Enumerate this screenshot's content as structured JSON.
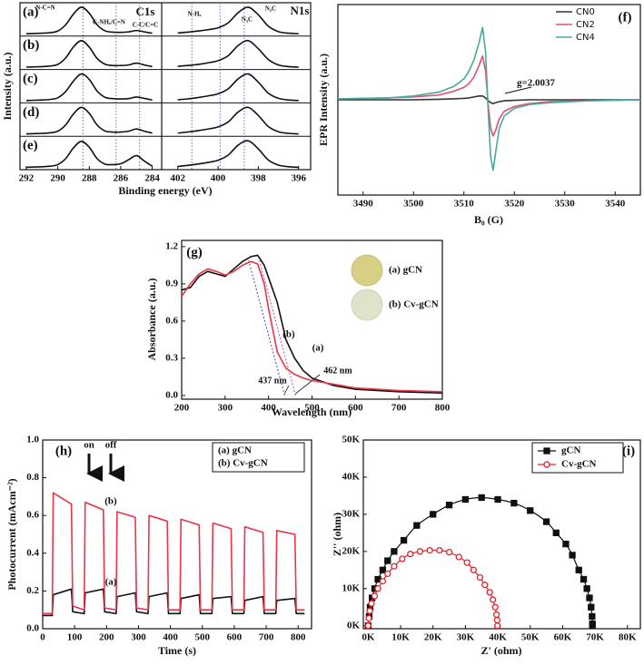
{
  "chart_data": [
    {
      "type": "xps-stack",
      "x_label": "Binding energy (eV)",
      "y_label": "Intensity (a.u.)",
      "ylim": [
        0,
        1.1
      ],
      "color": "#111111",
      "ref_color": "#5b6fd6",
      "regions": [
        {
          "name": "C1s",
          "xlim": [
            292.4,
            283.4
          ],
          "xticks": [
            292,
            290,
            288,
            286,
            284
          ],
          "x": [
            292,
            291.5,
            291,
            290.5,
            290,
            289.5,
            289,
            288.5,
            288,
            287.5,
            287,
            286.5,
            286,
            285.5,
            285,
            284.5,
            284
          ],
          "ref_lines": [
            288.4,
            286.3,
            284.8
          ],
          "annotations": [
            "N-C=N",
            "C-NHₓ/C=N",
            "C-C/C=C"
          ]
        },
        {
          "name": "N1s",
          "xlim": [
            402.8,
            395.4
          ],
          "xticks": [
            402,
            400,
            398,
            396
          ],
          "x": [
            402,
            401.5,
            401,
            400.5,
            400,
            399.5,
            399,
            398.5,
            398,
            397.5,
            397,
            396.5,
            396
          ],
          "ref_lines": [
            401.3,
            399.9,
            398.7
          ],
          "annotations": [
            "N-Hₓ",
            "N₃C",
            "N₂C"
          ]
        }
      ],
      "rows": [
        {
          "label": "(a)",
          "values": [
            [
              0.02,
              0.03,
              0.04,
              0.06,
              0.12,
              0.35,
              0.75,
              1.0,
              0.78,
              0.35,
              0.13,
              0.08,
              0.07,
              0.09,
              0.14,
              0.09,
              0.04
            ],
            [
              0.05,
              0.08,
              0.12,
              0.17,
              0.24,
              0.42,
              0.8,
              1.0,
              0.72,
              0.3,
              0.1,
              0.04,
              0.02
            ]
          ]
        },
        {
          "label": "(b)",
          "values": [
            [
              0.02,
              0.03,
              0.04,
              0.06,
              0.12,
              0.36,
              0.77,
              1.0,
              0.76,
              0.34,
              0.13,
              0.08,
              0.08,
              0.1,
              0.17,
              0.1,
              0.04
            ],
            [
              0.05,
              0.08,
              0.12,
              0.18,
              0.26,
              0.44,
              0.82,
              1.0,
              0.7,
              0.3,
              0.1,
              0.04,
              0.02
            ]
          ]
        },
        {
          "label": "(c)",
          "values": [
            [
              0.02,
              0.03,
              0.04,
              0.06,
              0.12,
              0.35,
              0.74,
              1.0,
              0.8,
              0.37,
              0.14,
              0.09,
              0.08,
              0.09,
              0.15,
              0.1,
              0.04
            ],
            [
              0.05,
              0.08,
              0.13,
              0.19,
              0.27,
              0.45,
              0.82,
              1.0,
              0.7,
              0.29,
              0.1,
              0.04,
              0.02
            ]
          ]
        },
        {
          "label": "(d)",
          "values": [
            [
              0.02,
              0.03,
              0.04,
              0.06,
              0.12,
              0.35,
              0.76,
              1.0,
              0.78,
              0.35,
              0.13,
              0.09,
              0.09,
              0.12,
              0.2,
              0.12,
              0.05
            ],
            [
              0.05,
              0.09,
              0.14,
              0.2,
              0.28,
              0.46,
              0.83,
              1.0,
              0.7,
              0.29,
              0.1,
              0.04,
              0.02
            ]
          ]
        },
        {
          "label": "(e)",
          "values": [
            [
              0.02,
              0.03,
              0.04,
              0.06,
              0.12,
              0.34,
              0.74,
              0.98,
              0.76,
              0.34,
              0.14,
              0.12,
              0.15,
              0.3,
              0.45,
              0.25,
              0.06
            ],
            [
              0.05,
              0.09,
              0.14,
              0.2,
              0.28,
              0.47,
              0.84,
              1.0,
              0.7,
              0.29,
              0.1,
              0.04,
              0.02
            ]
          ]
        }
      ]
    },
    {
      "type": "line",
      "label": "(f)",
      "x_label": "B₀ (G)",
      "y_label": "EPR Intensity (a.u.)",
      "legend": "upper right",
      "xlim": [
        3485,
        3545
      ],
      "xticks": [
        3490,
        3500,
        3510,
        3520,
        3530,
        3540
      ],
      "ylim": [
        -1,
        1
      ],
      "x": [
        3485,
        3495,
        3500,
        3505,
        3508,
        3510,
        3511,
        3512,
        3513,
        3513.7,
        3514.3,
        3514.8,
        3515.3,
        3515.8,
        3516.3,
        3517,
        3518,
        3520,
        3523,
        3527,
        3535,
        3545
      ],
      "series": [
        {
          "name": "CN0",
          "color": "#333333",
          "values": [
            0,
            0,
            0,
            0.005,
            0.01,
            0.015,
            0.02,
            0.03,
            0.04,
            0.04,
            0.02,
            -0.01,
            -0.03,
            -0.04,
            -0.03,
            -0.02,
            -0.01,
            -0.005,
            0,
            0,
            0,
            0
          ]
        },
        {
          "name": "CN2",
          "color": "#e0506e",
          "values": [
            0.01,
            0.02,
            0.03,
            0.05,
            0.09,
            0.13,
            0.17,
            0.24,
            0.36,
            0.46,
            0.3,
            -0.05,
            -0.3,
            -0.38,
            -0.32,
            -0.2,
            -0.12,
            -0.07,
            -0.04,
            -0.02,
            -0.01,
            0
          ]
        },
        {
          "name": "CN4",
          "color": "#4aa8a0",
          "values": [
            0.01,
            0.02,
            0.04,
            0.08,
            0.14,
            0.22,
            0.3,
            0.42,
            0.6,
            0.76,
            0.5,
            -0.1,
            -0.6,
            -0.74,
            -0.55,
            -0.3,
            -0.17,
            -0.09,
            -0.05,
            -0.03,
            -0.01,
            0
          ]
        }
      ],
      "annotations": [
        {
          "text": "g=2.0037",
          "color": "#111111"
        }
      ]
    },
    {
      "type": "line",
      "label": "(g)",
      "x_label": "Wavelength (nm)",
      "y_label": "Absorbance (a.u.)",
      "legend": "upper right",
      "xlim": [
        200,
        800
      ],
      "xticks": [
        200,
        300,
        400,
        500,
        600,
        700,
        800
      ],
      "ylim": [
        -0.03,
        1.25
      ],
      "yticks": [
        {
          "value": 0,
          "label": "0.0"
        },
        0.3,
        0.6,
        0.9,
        1.2
      ],
      "x": [
        200,
        220,
        240,
        260,
        280,
        300,
        320,
        340,
        360,
        375,
        390,
        400,
        420,
        440,
        460,
        480,
        500,
        550,
        600,
        650,
        700,
        800
      ],
      "series": [
        {
          "name": "(a) gCN",
          "color": "#111111",
          "values": [
            0.85,
            0.87,
            0.96,
            1.0,
            0.98,
            0.96,
            1.02,
            1.08,
            1.12,
            1.13,
            1.05,
            0.95,
            0.75,
            0.45,
            0.3,
            0.2,
            0.14,
            0.08,
            0.05,
            0.04,
            0.03,
            0.02
          ]
        },
        {
          "name": "(b) Cv-gCN",
          "color": "#e8354a",
          "values": [
            0.8,
            0.9,
            0.98,
            1.02,
            1.0,
            0.97,
            1.0,
            1.05,
            1.08,
            1.06,
            0.9,
            0.7,
            0.35,
            0.22,
            0.17,
            0.14,
            0.12,
            0.09,
            0.06,
            0.05,
            0.04,
            0.03
          ]
        }
      ],
      "annotations": [
        {
          "text": "(a)",
          "color": "#111111"
        },
        {
          "text": "(b)",
          "color": "#e8354a"
        }
      ],
      "tangents": [
        {
          "value": 437,
          "label": "437 nm",
          "color": "#3b4bd0"
        },
        {
          "value": 462,
          "label": "462 nm",
          "color": "#d040b0"
        }
      ]
    },
    {
      "type": "line",
      "label": "(h)",
      "x_label": "Time (s)",
      "y_label": "Photocurrent (mAcm⁻²)",
      "legend": "upper right",
      "xlim": [
        0,
        842
      ],
      "xticks": [
        0,
        100,
        200,
        300,
        400,
        500,
        600,
        700,
        800
      ],
      "ylim": [
        0,
        1
      ],
      "yticks": [
        {
          "value": 0,
          "label": "0.0"
        },
        0.2,
        0.4,
        0.6,
        0.8,
        {
          "value": 1,
          "label": "1.0"
        }
      ],
      "x": [
        0,
        30,
        33,
        90,
        94,
        130,
        133,
        190,
        194,
        230,
        233,
        290,
        294,
        330,
        333,
        390,
        394,
        430,
        433,
        490,
        494,
        530,
        533,
        590,
        594,
        630,
        633,
        690,
        694,
        730,
        733,
        790,
        794,
        820
      ],
      "series": [
        {
          "name": "(a) gCN",
          "color": "#111111",
          "values": [
            0.07,
            0.07,
            0.18,
            0.21,
            0.09,
            0.08,
            0.19,
            0.21,
            0.09,
            0.08,
            0.17,
            0.19,
            0.09,
            0.08,
            0.17,
            0.19,
            0.08,
            0.08,
            0.16,
            0.18,
            0.08,
            0.08,
            0.16,
            0.17,
            0.08,
            0.08,
            0.15,
            0.17,
            0.08,
            0.08,
            0.15,
            0.16,
            0.08,
            0.08
          ]
        },
        {
          "name": "(b) Cv-gCN",
          "color": "#e8354a",
          "values": [
            0.08,
            0.08,
            0.72,
            0.66,
            0.12,
            0.1,
            0.67,
            0.63,
            0.11,
            0.1,
            0.62,
            0.59,
            0.11,
            0.1,
            0.6,
            0.57,
            0.1,
            0.1,
            0.58,
            0.55,
            0.1,
            0.1,
            0.56,
            0.53,
            0.1,
            0.1,
            0.54,
            0.51,
            0.1,
            0.1,
            0.52,
            0.5,
            0.1,
            0.1
          ]
        }
      ],
      "annotations": [
        {
          "text": "on",
          "color": "#2a3f9e"
        },
        {
          "text": "off",
          "color": "#2a3f9e"
        },
        {
          "text": "(b)",
          "color": "#4a5fc1"
        },
        {
          "text": "(a)",
          "color": "#4a5fc1"
        }
      ]
    },
    {
      "type": "scatter",
      "label": "(i)",
      "x_label": "Z' (ohm)",
      "y_label": "Z'' (ohm)",
      "legend": "upper right",
      "xlim": [
        -1500,
        84000
      ],
      "xticks": [
        {
          "value": 0,
          "label": "0K"
        },
        {
          "value": 10000,
          "label": "10K"
        },
        {
          "value": 20000,
          "label": "20K"
        },
        {
          "value": 30000,
          "label": "30K"
        },
        {
          "value": 40000,
          "label": "40K"
        },
        {
          "value": 50000,
          "label": "50K"
        },
        {
          "value": 60000,
          "label": "60K"
        },
        {
          "value": 70000,
          "label": "70K"
        },
        {
          "value": 80000,
          "label": "80K"
        }
      ],
      "ylim": [
        -800,
        50000
      ],
      "yticks": [
        {
          "value": 0,
          "label": "0K"
        },
        {
          "value": 10000,
          "label": "10K"
        },
        {
          "value": 20000,
          "label": "20K"
        },
        {
          "value": 30000,
          "label": "30K"
        },
        {
          "value": 40000,
          "label": "40K"
        },
        {
          "value": 50000,
          "label": "50K"
        }
      ],
      "series": [
        {
          "name": "gCN",
          "color": "#111111",
          "marker": "square",
          "filled": true,
          "x": [
            0,
            300,
            600,
            1200,
            2000,
            3000,
            4500,
            6000,
            8000,
            11000,
            15000,
            20000,
            25000,
            30000,
            35000,
            40000,
            45000,
            50000,
            55000,
            58000,
            61000,
            63000,
            65000,
            66500,
            67500,
            68300,
            68800,
            69100,
            69200,
            69200
          ],
          "values": [
            0,
            2500,
            5000,
            7500,
            10000,
            12500,
            15000,
            17500,
            20000,
            23000,
            27000,
            30000,
            32500,
            34000,
            34500,
            34000,
            33000,
            31000,
            28000,
            25000,
            22000,
            19000,
            15000,
            12500,
            10000,
            7500,
            5000,
            2500,
            500,
            0
          ]
        },
        {
          "name": "Cv-gCN",
          "color": "#e8202a",
          "marker": "circle",
          "filled": false,
          "x": [
            0,
            200,
            500,
            1000,
            2000,
            3000,
            4500,
            6000,
            8000,
            10500,
            13000,
            16000,
            19000,
            22000,
            25000,
            28000,
            30500,
            32500,
            34500,
            36000,
            37500,
            38500,
            39200,
            39600,
            39800,
            39900
          ],
          "values": [
            0,
            2000,
            4000,
            6000,
            8000,
            10000,
            12000,
            14000,
            16000,
            18000,
            19300,
            20000,
            20300,
            20300,
            19800,
            18500,
            17000,
            15000,
            13000,
            11000,
            9000,
            7000,
            5000,
            3000,
            1500,
            0
          ]
        }
      ]
    }
  ]
}
